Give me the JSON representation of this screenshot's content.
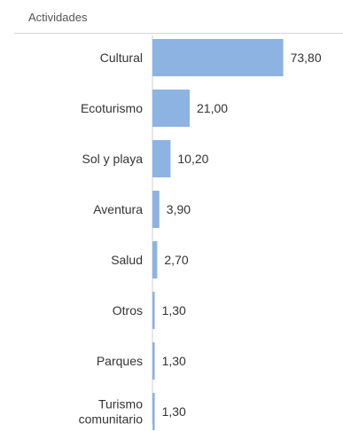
{
  "header": {
    "label": "Actividades"
  },
  "chart_data": {
    "type": "bar",
    "orientation": "horizontal",
    "categories": [
      "Cultural",
      "Ecoturismo",
      "Sol y playa",
      "Aventura",
      "Salud",
      "Otros",
      "Parques",
      "Turismo comunitario"
    ],
    "category_lines": [
      [
        "Cultural"
      ],
      [
        "Ecoturismo"
      ],
      [
        "Sol y playa"
      ],
      [
        "Aventura"
      ],
      [
        "Salud"
      ],
      [
        "Otros"
      ],
      [
        "Parques"
      ],
      [
        "Turismo",
        "comunitario"
      ]
    ],
    "values": [
      73.8,
      21.0,
      10.2,
      3.9,
      2.7,
      1.3,
      1.3,
      1.3
    ],
    "value_labels": [
      "73,80",
      "21,00",
      "10,20",
      "3,90",
      "2,70",
      "1,30",
      "1,30",
      "1,30"
    ],
    "colors": {
      "bar": "#8db3e2",
      "axis": "#d0d0d0",
      "label": "#333333",
      "value": "#333333"
    },
    "grid": false,
    "legend": "none"
  }
}
